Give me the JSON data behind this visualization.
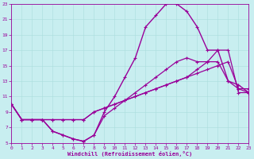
{
  "xlabel": "Windchill (Refroidissement éolien,°C)",
  "xlim": [
    0,
    23
  ],
  "ylim": [
    5,
    23
  ],
  "xticks": [
    0,
    1,
    2,
    3,
    4,
    5,
    6,
    7,
    8,
    9,
    10,
    11,
    12,
    13,
    14,
    15,
    16,
    17,
    18,
    19,
    20,
    21,
    22,
    23
  ],
  "yticks": [
    5,
    7,
    9,
    11,
    13,
    15,
    17,
    19,
    21,
    23
  ],
  "bg_color": "#c8eef0",
  "line_color": "#990099",
  "grid_color": "#aadddd",
  "curves": [
    {
      "x": [
        0,
        1,
        2,
        3,
        4,
        5,
        6,
        7,
        8,
        9,
        10,
        11,
        12,
        13,
        14,
        15,
        16,
        17,
        18,
        19,
        20,
        21,
        22,
        23
      ],
      "y": [
        10,
        8,
        8,
        8,
        6.5,
        6,
        5.5,
        5.2,
        6,
        8.5,
        9.5,
        10.5,
        11.5,
        12.5,
        13.5,
        14.5,
        15.5,
        16,
        15.5,
        15.5,
        15.5,
        13,
        12,
        12
      ],
      "lw": 0.9
    },
    {
      "x": [
        0,
        1,
        2,
        3,
        4,
        5,
        6,
        7,
        8,
        9,
        10,
        11,
        12,
        13,
        14,
        15,
        16,
        17,
        18,
        19,
        20,
        21,
        22,
        23
      ],
      "y": [
        10,
        8,
        8,
        8,
        8,
        8,
        8,
        8,
        9,
        9.5,
        10,
        10.5,
        11,
        11.5,
        12,
        12.5,
        13,
        13.5,
        14,
        14.5,
        15,
        15.5,
        12,
        11.5
      ],
      "lw": 0.9
    },
    {
      "x": [
        0,
        1,
        2,
        3,
        4,
        5,
        6,
        7,
        8,
        9,
        10,
        11,
        12,
        13,
        14,
        15,
        16,
        17,
        18,
        19,
        20,
        21,
        22,
        23
      ],
      "y": [
        10,
        8,
        8,
        8,
        8,
        8,
        8,
        8,
        9,
        9.5,
        10,
        10.5,
        11,
        11.5,
        12,
        12.5,
        13,
        13.5,
        14.5,
        15.5,
        17,
        17,
        11.5,
        11.5
      ],
      "lw": 0.9
    },
    {
      "x": [
        0,
        1,
        2,
        3,
        4,
        5,
        6,
        7,
        8,
        9,
        10,
        11,
        12,
        13,
        14,
        15,
        16,
        17,
        18,
        19,
        20,
        21,
        22,
        23
      ],
      "y": [
        10,
        8,
        8,
        8,
        6.5,
        6,
        5.5,
        5.2,
        6,
        9,
        11,
        13.5,
        16,
        20,
        21.5,
        23,
        23,
        22,
        20,
        17,
        17,
        13,
        12.5,
        11.5
      ],
      "lw": 1.0
    }
  ]
}
